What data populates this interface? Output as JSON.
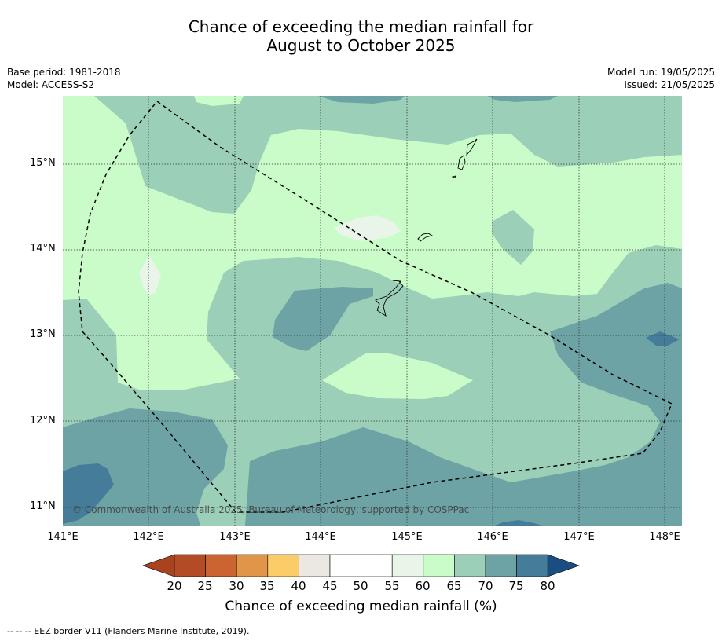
{
  "title_line1": "Chance of exceeding the median rainfall for",
  "title_line2": "August to October 2025",
  "meta_left": {
    "base_period": "Base period: 1981-2018",
    "model": "Model: ACCESS-S2"
  },
  "meta_right": {
    "model_run": "Model run: 19/05/2025",
    "issued": "Issued: 21/05/2025"
  },
  "lat_labels": [
    "15°N",
    "14°N",
    "13°N",
    "12°N",
    "11°N"
  ],
  "lon_labels": [
    "141°E",
    "142°E",
    "143°E",
    "144°E",
    "145°E",
    "146°E",
    "147°E",
    "148°E"
  ],
  "copyright": "© Commonwealth of Australia 2025, Bureau of Meteorology, supported by COSPPac",
  "colorbar": {
    "ticks": [
      "20",
      "25",
      "30",
      "35",
      "40",
      "45",
      "50",
      "55",
      "60",
      "65",
      "70",
      "75",
      "80"
    ],
    "colors": [
      "#a8421f",
      "#b34b26",
      "#cb6431",
      "#e09549",
      "#fbcd69",
      "#ebe7e2",
      "#ffffff",
      "#ffffff",
      "#e8f5e8",
      "#c9fcc9",
      "#9ccfb7",
      "#6ea3a6",
      "#457c99",
      "#1a4d80"
    ],
    "label": "Chance of exceeding median rainfall (%)"
  },
  "footnote": "--  --  -- EEZ border V11 (Flanders Marine Institute, 2019)."
}
